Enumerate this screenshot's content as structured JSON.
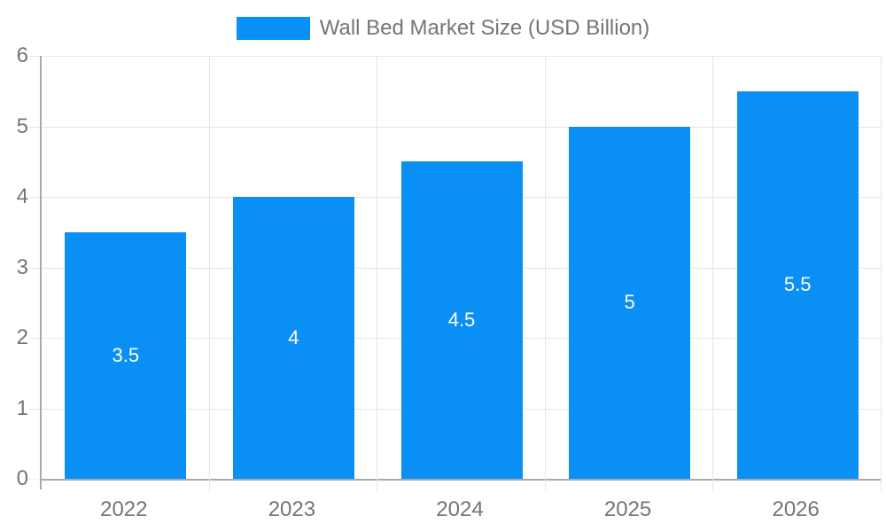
{
  "chart": {
    "background": "#ffffff",
    "accent": "#0a8ff5",
    "grid_color": "#e6e6e6",
    "tick_color": "#e0e0e0",
    "axis_color": "#aaaaaa",
    "label_color": "#757575",
    "value_label_color": "#ffffff"
  },
  "chart_data": {
    "type": "bar",
    "title": "Wall Bed Market Size (USD Billion)",
    "legend": {
      "position": "top",
      "label": "Wall Bed Market Size (USD Billion)"
    },
    "categories": [
      "2022",
      "2023",
      "2024",
      "2025",
      "2026"
    ],
    "values": [
      3.5,
      4,
      4.5,
      5,
      5.5
    ],
    "value_labels": [
      "3.5",
      "4",
      "4.5",
      "5",
      "5.5"
    ],
    "xlabel": "",
    "ylabel": "",
    "ylim": [
      0,
      6
    ],
    "yticks": [
      0,
      1,
      2,
      3,
      4,
      5,
      6
    ],
    "ytick_labels": [
      "0",
      "1",
      "2",
      "3",
      "4",
      "5",
      "6"
    ],
    "grid": true,
    "value_label_position": "center"
  }
}
